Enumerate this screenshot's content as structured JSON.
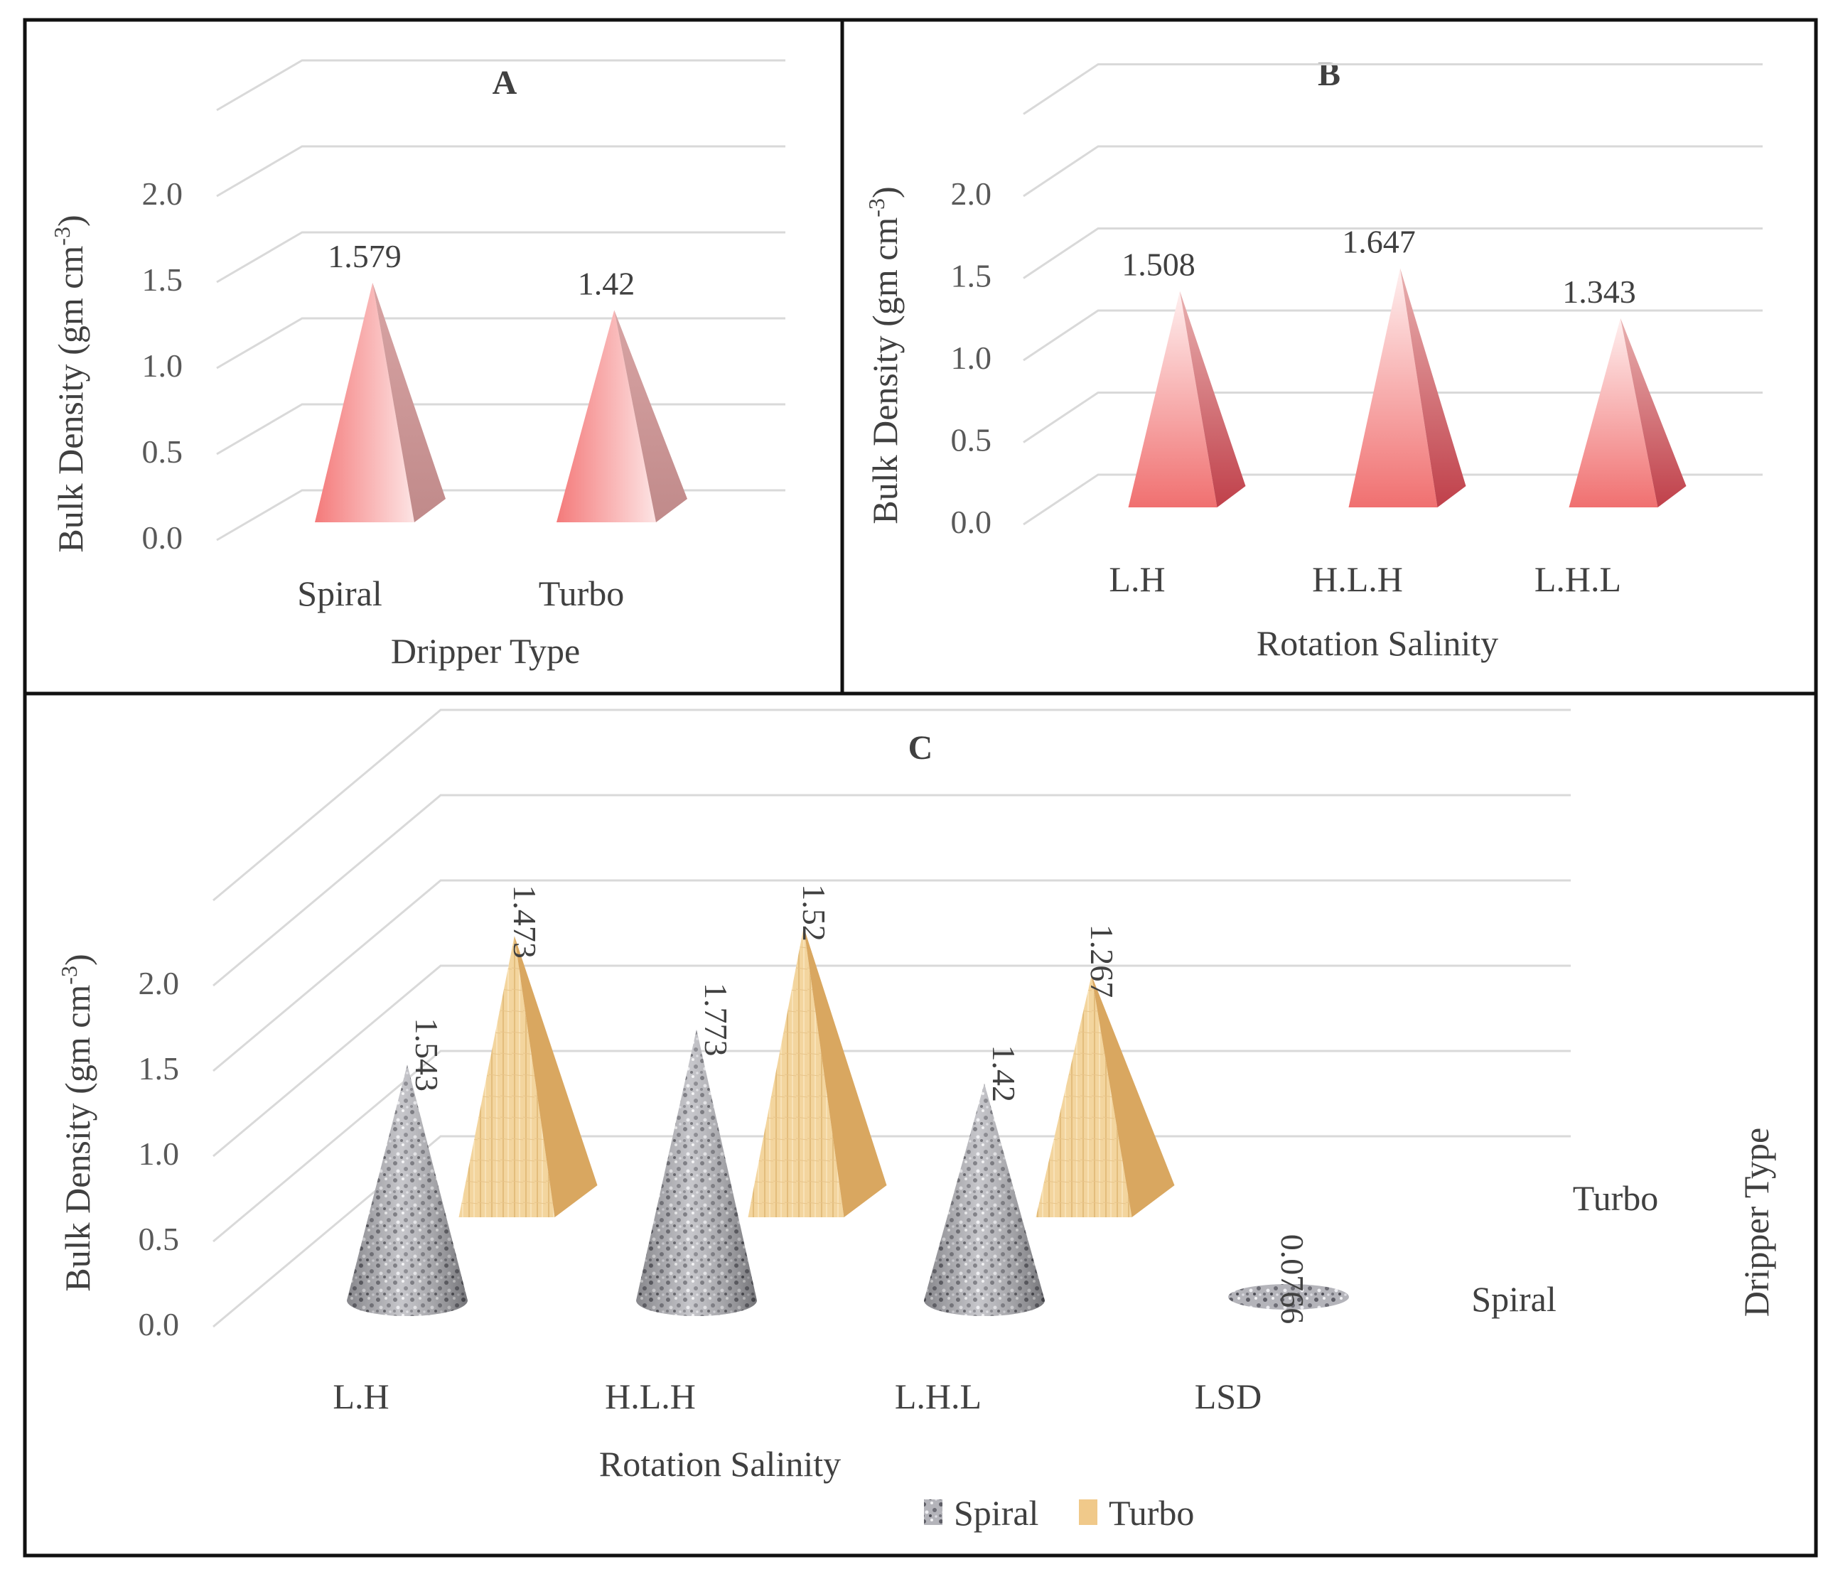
{
  "chart_data": [
    {
      "type": "bar",
      "panel": "A",
      "title": "A",
      "shape": "pyramid",
      "categories": [
        "Spiral",
        "Turbo"
      ],
      "values": [
        1.579,
        1.42
      ],
      "value_labels": [
        "1.579",
        "1.42"
      ],
      "xlabel": "Dripper Type",
      "ylabel": "Bulk Density (gm cm",
      "ylabel_sup": "-3",
      "ylabel_end": ")",
      "yticks": [
        "0.0",
        "0.5",
        "1.0",
        "1.5",
        "2.0"
      ],
      "ylim": [
        0,
        2
      ],
      "color": "#f08080"
    },
    {
      "type": "bar",
      "panel": "B",
      "title": "B",
      "shape": "pyramid",
      "categories": [
        "L.H",
        "H.L.H",
        "L.H.L"
      ],
      "values": [
        1.508,
        1.647,
        1.343
      ],
      "value_labels": [
        "1.508",
        "1.647",
        "1.343"
      ],
      "xlabel": "Rotation Salinity",
      "ylabel": "Bulk Density (gm cm",
      "ylabel_sup": "-3",
      "ylabel_end": ")",
      "yticks": [
        "0.0",
        "0.5",
        "1.0",
        "1.5",
        "2.0"
      ],
      "ylim": [
        0,
        2
      ],
      "color": "#e8606a"
    },
    {
      "type": "bar",
      "panel": "C",
      "title": "C",
      "shape": "3d cone / pyramid",
      "categories": [
        "L.H",
        "H.L.H",
        "L.H.L",
        "LSD"
      ],
      "series": [
        {
          "name": "Spiral",
          "values": [
            1.543,
            1.773,
            1.42,
            0.0766
          ],
          "value_labels": [
            "1.543",
            "1.773",
            "1.42",
            "0.0766"
          ],
          "color": "#9a9aa2"
        },
        {
          "name": "Turbo",
          "values": [
            1.473,
            1.52,
            1.267,
            null
          ],
          "value_labels": [
            "1.473",
            "1.52",
            "1.267",
            ""
          ],
          "color": "#f0c98a"
        }
      ],
      "depth_labels": [
        "Turbo",
        "Spiral"
      ],
      "depth_axis_label": "Dripper Type",
      "xlabel": "Rotation Salinity",
      "ylabel": "Bulk Density (gm cm",
      "ylabel_sup": "-3",
      "ylabel_end": ")",
      "yticks": [
        "0.0",
        "0.5",
        "1.0",
        "1.5",
        "2.0"
      ],
      "ylim": [
        0,
        2
      ],
      "legend": [
        "Spiral",
        "Turbo"
      ]
    }
  ]
}
